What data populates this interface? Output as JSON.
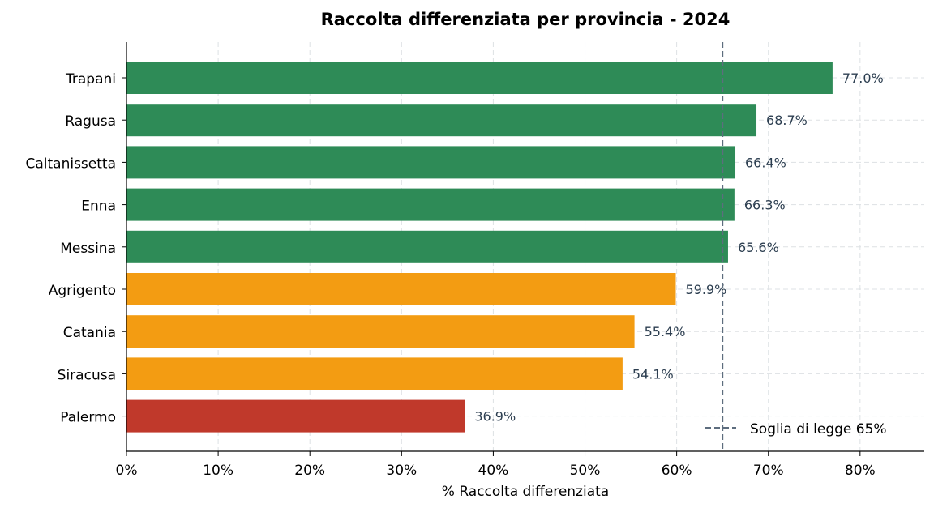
{
  "chart_data": {
    "type": "bar",
    "orientation": "horizontal",
    "title": "Raccolta differenziata per provincia - 2024",
    "xlabel": "% Raccolta differenziata",
    "ylabel": "",
    "xlim": [
      0,
      87
    ],
    "xticks": [
      0,
      10,
      20,
      30,
      40,
      50,
      60,
      70,
      80
    ],
    "xtick_labels": [
      "0%",
      "10%",
      "20%",
      "30%",
      "40%",
      "50%",
      "60%",
      "70%",
      "80%"
    ],
    "grid": true,
    "categories": [
      "Trapani",
      "Ragusa",
      "Caltanissetta",
      "Enna",
      "Messina",
      "Agrigento",
      "Catania",
      "Siracusa",
      "Palermo"
    ],
    "values": [
      77.0,
      68.7,
      66.4,
      66.3,
      65.6,
      59.9,
      55.4,
      54.1,
      36.9
    ],
    "data_labels": [
      "77.0%",
      "68.7%",
      "66.4%",
      "66.3%",
      "65.6%",
      "59.9%",
      "55.4%",
      "54.1%",
      "36.9%"
    ],
    "bar_colors": [
      "#2e8b57",
      "#2e8b57",
      "#2e8b57",
      "#2e8b57",
      "#2e8b57",
      "#f39c12",
      "#f39c12",
      "#f39c12",
      "#c0392b"
    ],
    "threshold": {
      "value": 65,
      "label": "Soglia di legge 65%",
      "color": "#5d6d7e",
      "style": "dashed"
    },
    "legend_position": "bottom-right"
  }
}
